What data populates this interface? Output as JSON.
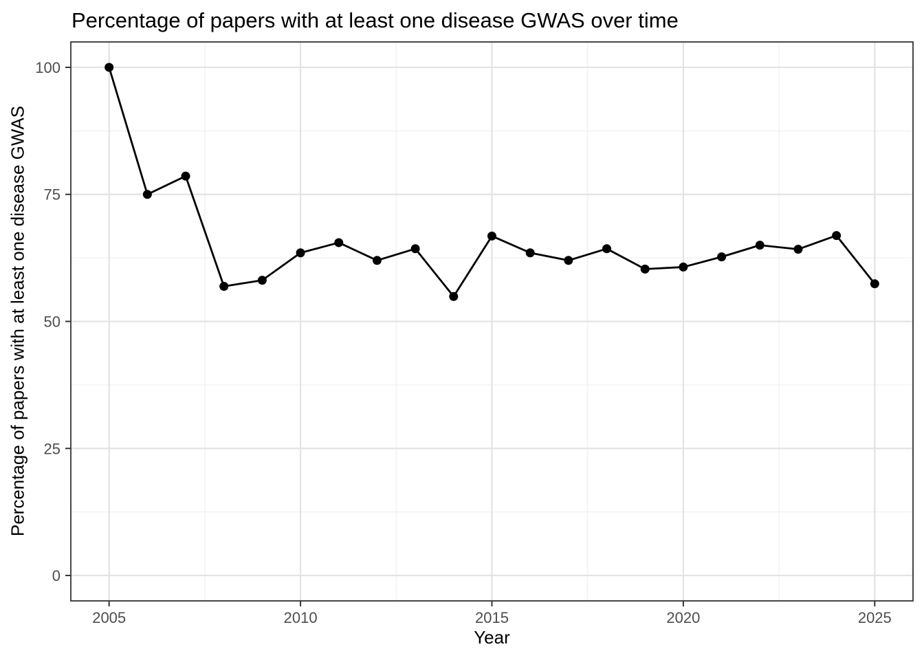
{
  "chart_data": {
    "type": "line",
    "title": "Percentage of papers with at least one disease GWAS over time",
    "xlabel": "Year",
    "ylabel": "Percentage of papers with at least one disease GWAS",
    "series": [
      {
        "name": "percentage-of-papers-with-disease-gwas",
        "x": [
          2005,
          2006,
          2007,
          2008,
          2009,
          2010,
          2011,
          2012,
          2013,
          2014,
          2015,
          2016,
          2017,
          2018,
          2019,
          2020,
          2021,
          2022,
          2023,
          2024,
          2025
        ],
        "y": [
          100,
          75,
          78.6,
          56.9,
          58.1,
          63.5,
          65.5,
          62,
          64.3,
          54.9,
          66.8,
          63.5,
          62,
          64.3,
          60.3,
          60.7,
          62.7,
          65,
          64.2,
          66.9,
          57.4
        ]
      }
    ],
    "x_ticks": [
      2005,
      2010,
      2015,
      2020,
      2025
    ],
    "y_ticks": [
      0,
      25,
      50,
      75,
      100
    ],
    "x_minor_ticks": [
      2007.5,
      2012.5,
      2017.5,
      2022.5
    ],
    "y_minor_ticks": [
      12.5,
      37.5,
      62.5,
      87.5
    ],
    "xlim": [
      2004,
      2026
    ],
    "ylim": [
      -5,
      105
    ],
    "grid": "major-and-minor",
    "legend": false,
    "point_marker": "filled-circle",
    "colors": {
      "line": "#000000",
      "point": "#000000",
      "panel_background": "#FFFFFF",
      "panel_border": "#333333",
      "major_grid": "#E3E3E3",
      "minor_grid": "#F0F0F0",
      "tick_mark": "#333333",
      "tick_label": "#4D4D4D",
      "title_text": "#000000",
      "axis_label_text": "#000000"
    }
  }
}
